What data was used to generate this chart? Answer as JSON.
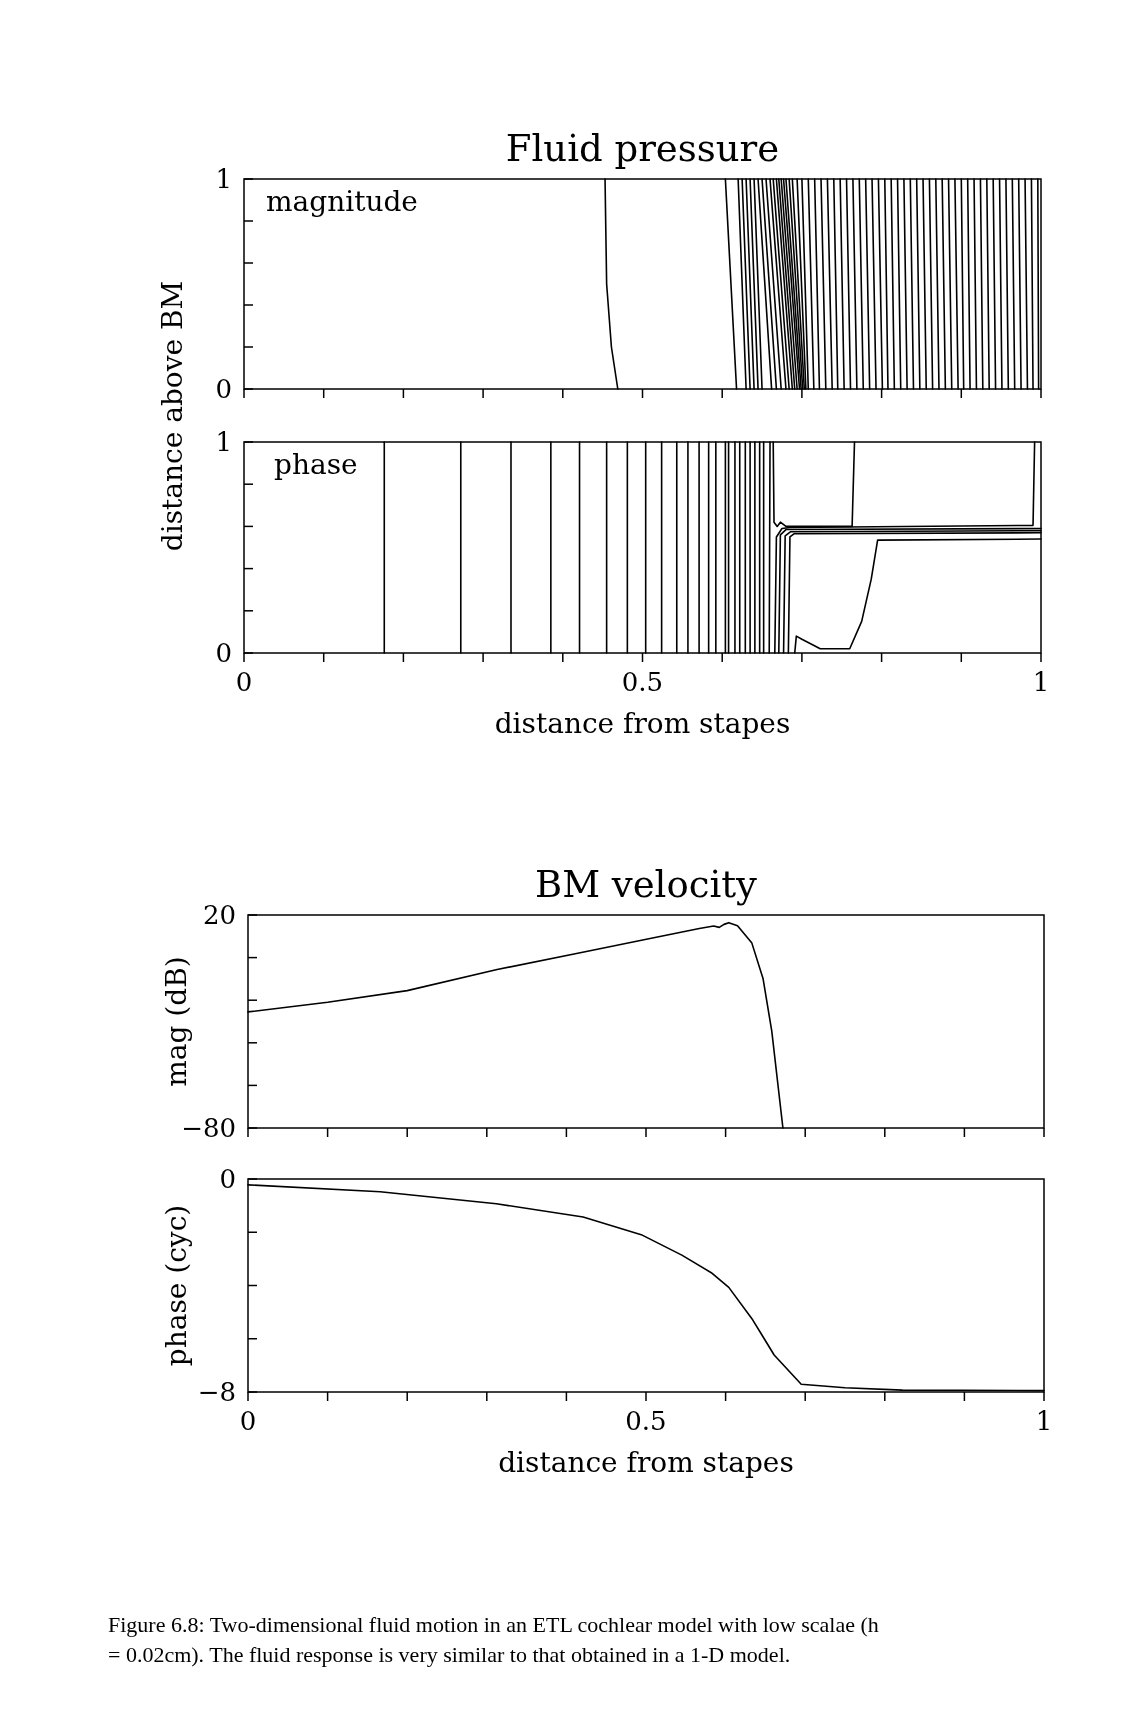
{
  "chart_data": [
    {
      "type": "line",
      "title": "Fluid pressure",
      "ylabel": "distance above BM",
      "annotations": [
        "magnitude"
      ],
      "color": "#000000",
      "xlim": [
        0,
        1
      ],
      "ylim": [
        0,
        1
      ],
      "xticks": [
        0,
        {
          "value": 0.1,
          "label": null
        },
        {
          "value": 0.2,
          "label": null
        },
        {
          "value": 0.3,
          "label": null
        },
        {
          "value": 0.4,
          "label": null
        },
        0.5,
        {
          "value": 0.6,
          "label": null
        },
        {
          "value": 0.7,
          "label": null
        },
        {
          "value": 0.8,
          "label": null
        },
        {
          "value": 0.9,
          "label": null
        },
        1
      ],
      "yticks": [
        0,
        {
          "value": 0.2,
          "label": null
        },
        {
          "value": 0.4,
          "label": null
        },
        {
          "value": 0.6,
          "label": null
        },
        {
          "value": 0.8,
          "label": null
        },
        1
      ],
      "tick_labels": "y",
      "series": [
        {
          "x": [
            0.453,
            0.455,
            0.461,
            0.469
          ],
          "values": [
            1,
            0.5,
            0.2,
            0
          ]
        },
        {
          "x": [
            0.604,
            0.618
          ],
          "values": [
            1,
            0
          ]
        },
        {
          "x": [
            0.62,
            0.63
          ],
          "values": [
            1,
            0
          ]
        },
        {
          "x": [
            0.625,
            0.635
          ],
          "values": [
            1,
            0
          ]
        },
        {
          "x": [
            0.63,
            0.64
          ],
          "values": [
            1,
            0
          ]
        },
        {
          "x": [
            0.635,
            0.645
          ],
          "values": [
            1,
            0
          ]
        },
        {
          "x": [
            0.64,
            0.65
          ],
          "values": [
            1,
            0
          ]
        },
        {
          "x": [
            0.645,
            0.662
          ],
          "values": [
            1,
            0
          ]
        },
        {
          "x": [
            0.65,
            0.668
          ],
          "values": [
            1,
            0
          ]
        },
        {
          "x": [
            0.655,
            0.674
          ],
          "values": [
            1,
            0
          ]
        },
        {
          "x": [
            0.66,
            0.68
          ],
          "values": [
            1,
            0
          ]
        },
        {
          "x": [
            0.664,
            0.684
          ],
          "values": [
            1,
            0
          ]
        },
        {
          "x": [
            0.668,
            0.688
          ],
          "values": [
            1,
            0
          ]
        },
        {
          "x": [
            0.671,
            0.691
          ],
          "values": [
            1,
            0
          ]
        },
        {
          "x": [
            0.674,
            0.694
          ],
          "values": [
            1,
            0
          ]
        },
        {
          "x": [
            0.677,
            0.697
          ],
          "values": [
            1,
            0
          ]
        },
        {
          "x": [
            0.68,
            0.699
          ],
          "values": [
            1,
            0
          ]
        },
        {
          "x": [
            0.684,
            0.701
          ],
          "values": [
            1,
            0
          ]
        },
        {
          "x": [
            0.688,
            0.703
          ],
          "values": [
            1,
            0
          ]
        },
        {
          "x": [
            0.694,
            0.705
          ],
          "values": [
            1,
            0
          ]
        },
        {
          "x": [
            0.7,
            0.708
          ],
          "values": [
            1,
            0
          ]
        },
        {
          "x": [
            0.708,
            0.715
          ],
          "values": [
            1,
            0
          ]
        },
        {
          "x": [
            0.716,
            0.722
          ],
          "values": [
            1,
            0
          ]
        },
        {
          "x": [
            0.724,
            0.73
          ],
          "values": [
            1,
            0
          ]
        },
        {
          "x": [
            0.732,
            0.738
          ],
          "values": [
            1,
            0
          ]
        },
        {
          "x": [
            0.74,
            0.745
          ],
          "values": [
            1,
            0
          ]
        },
        {
          "x": [
            0.748,
            0.753
          ],
          "values": [
            1,
            0
          ]
        },
        {
          "x": [
            0.756,
            0.761
          ],
          "values": [
            1,
            0
          ]
        },
        {
          "x": [
            0.764,
            0.769
          ],
          "values": [
            1,
            0
          ]
        },
        {
          "x": [
            0.772,
            0.777
          ],
          "values": [
            1,
            0
          ]
        },
        {
          "x": [
            0.78,
            0.785
          ],
          "values": [
            1,
            0
          ]
        },
        {
          "x": [
            0.788,
            0.793
          ],
          "values": [
            1,
            0
          ]
        },
        {
          "x": [
            0.796,
            0.801
          ],
          "values": [
            1,
            0
          ]
        },
        {
          "x": [
            0.804,
            0.808
          ],
          "values": [
            1,
            0
          ]
        },
        {
          "x": [
            0.812,
            0.816
          ],
          "values": [
            1,
            0
          ]
        },
        {
          "x": [
            0.82,
            0.824
          ],
          "values": [
            1,
            0
          ]
        },
        {
          "x": [
            0.828,
            0.832
          ],
          "values": [
            1,
            0
          ]
        },
        {
          "x": [
            0.836,
            0.84
          ],
          "values": [
            1,
            0
          ]
        },
        {
          "x": [
            0.844,
            0.848
          ],
          "values": [
            1,
            0
          ]
        },
        {
          "x": [
            0.852,
            0.856
          ],
          "values": [
            1,
            0
          ]
        },
        {
          "x": [
            0.86,
            0.864
          ],
          "values": [
            1,
            0
          ]
        },
        {
          "x": [
            0.868,
            0.872
          ],
          "values": [
            1,
            0
          ]
        },
        {
          "x": [
            0.876,
            0.88
          ],
          "values": [
            1,
            0
          ]
        },
        {
          "x": [
            0.884,
            0.888
          ],
          "values": [
            1,
            0
          ]
        },
        {
          "x": [
            0.892,
            0.896
          ],
          "values": [
            1,
            0
          ]
        },
        {
          "x": [
            0.9,
            0.903
          ],
          "values": [
            1,
            0
          ]
        },
        {
          "x": [
            0.908,
            0.911
          ],
          "values": [
            1,
            0
          ]
        },
        {
          "x": [
            0.916,
            0.919
          ],
          "values": [
            1,
            0
          ]
        },
        {
          "x": [
            0.924,
            0.927
          ],
          "values": [
            1,
            0
          ]
        },
        {
          "x": [
            0.932,
            0.935
          ],
          "values": [
            1,
            0
          ]
        },
        {
          "x": [
            0.94,
            0.943
          ],
          "values": [
            1,
            0
          ]
        },
        {
          "x": [
            0.948,
            0.951
          ],
          "values": [
            1,
            0
          ]
        },
        {
          "x": [
            0.956,
            0.959
          ],
          "values": [
            1,
            0
          ]
        },
        {
          "x": [
            0.964,
            0.967
          ],
          "values": [
            1,
            0
          ]
        },
        {
          "x": [
            0.972,
            0.975
          ],
          "values": [
            1,
            0
          ]
        },
        {
          "x": [
            0.98,
            0.983
          ],
          "values": [
            1,
            0
          ]
        },
        {
          "x": [
            0.988,
            0.99
          ],
          "values": [
            1,
            0
          ]
        },
        {
          "x": [
            0.996,
            0.997
          ],
          "values": [
            1,
            0
          ]
        }
      ]
    },
    {
      "type": "line",
      "xlabel": "distance from stapes",
      "annotations": [
        "phase"
      ],
      "color": "#000000",
      "xlim": [
        0,
        1
      ],
      "ylim": [
        0,
        1
      ],
      "xticks": [
        0,
        {
          "value": 0.1,
          "label": null
        },
        {
          "value": 0.2,
          "label": null
        },
        {
          "value": 0.3,
          "label": null
        },
        {
          "value": 0.4,
          "label": null
        },
        0.5,
        {
          "value": 0.6,
          "label": null
        },
        {
          "value": 0.7,
          "label": null
        },
        {
          "value": 0.8,
          "label": null
        },
        {
          "value": 0.9,
          "label": null
        },
        1
      ],
      "yticks": [
        0,
        {
          "value": 0.2,
          "label": null
        },
        {
          "value": 0.4,
          "label": null
        },
        {
          "value": 0.6,
          "label": null
        },
        {
          "value": 0.8,
          "label": null
        },
        1
      ],
      "series": [
        {
          "x": [
            0.176,
            0.176
          ],
          "values": [
            0,
            1
          ]
        },
        {
          "x": [
            0.272,
            0.272
          ],
          "values": [
            0,
            1
          ]
        },
        {
          "x": [
            0.335,
            0.335
          ],
          "values": [
            0,
            1
          ]
        },
        {
          "x": [
            0.385,
            0.385
          ],
          "values": [
            0,
            1
          ]
        },
        {
          "x": [
            0.421,
            0.421
          ],
          "values": [
            0,
            1
          ]
        },
        {
          "x": [
            0.455,
            0.455
          ],
          "values": [
            0,
            1
          ]
        },
        {
          "x": [
            0.481,
            0.481
          ],
          "values": [
            0,
            1
          ]
        },
        {
          "x": [
            0.504,
            0.504
          ],
          "values": [
            0,
            1
          ]
        },
        {
          "x": [
            0.524,
            0.524
          ],
          "values": [
            0,
            1
          ]
        },
        {
          "x": [
            0.543,
            0.543
          ],
          "values": [
            0,
            1
          ]
        },
        {
          "x": [
            0.557,
            0.557
          ],
          "values": [
            0,
            1
          ]
        },
        {
          "x": [
            0.571,
            0.571
          ],
          "values": [
            0,
            1
          ]
        },
        {
          "x": [
            0.583,
            0.583
          ],
          "values": [
            0,
            1
          ]
        },
        {
          "x": [
            0.592,
            0.592
          ],
          "values": [
            0,
            1
          ]
        },
        {
          "x": [
            0.604,
            0.604
          ],
          "values": [
            0,
            1
          ]
        },
        {
          "x": [
            0.608,
            0.608
          ],
          "values": [
            0,
            1
          ]
        },
        {
          "x": [
            0.616,
            0.616
          ],
          "values": [
            0,
            1
          ]
        },
        {
          "x": [
            0.622,
            0.622
          ],
          "values": [
            0,
            1
          ]
        },
        {
          "x": [
            0.629,
            0.629
          ],
          "values": [
            0,
            1
          ]
        },
        {
          "x": [
            0.635,
            0.635
          ],
          "values": [
            0,
            1
          ]
        },
        {
          "x": [
            0.641,
            0.641
          ],
          "values": [
            0,
            1
          ]
        },
        {
          "x": [
            0.647,
            0.647
          ],
          "values": [
            0,
            1
          ]
        },
        {
          "x": [
            0.652,
            0.652
          ],
          "values": [
            0,
            1
          ]
        },
        {
          "x": [
            0.659,
            0.66
          ],
          "values": [
            0,
            1
          ]
        },
        {
          "x": [
            0.664,
            0.665,
            0.669,
            0.673,
            0.68,
            0.763,
            0.766
          ],
          "values": [
            1,
            0.62,
            0.6,
            0.62,
            0.6,
            0.6,
            1
          ]
        },
        {
          "x": [
            0.666,
            0.668,
            0.675,
            0.685,
            0.99,
            0.992
          ],
          "values": [
            0,
            0.55,
            0.59,
            0.595,
            0.605,
            1
          ]
        },
        {
          "x": [
            0.671,
            0.673,
            0.68,
            1.0
          ],
          "values": [
            0,
            0.56,
            0.585,
            0.59
          ]
        },
        {
          "x": [
            0.677,
            0.679,
            0.686,
            1.0
          ],
          "values": [
            0,
            0.555,
            0.575,
            0.58
          ]
        },
        {
          "x": [
            0.683,
            0.685,
            0.69,
            1.0
          ],
          "values": [
            0,
            0.55,
            0.565,
            0.57
          ]
        },
        {
          "x": [
            0.691,
            0.693,
            0.7,
            0.723,
            0.76,
            0.775,
            0.787,
            0.795,
            1.0
          ],
          "values": [
            0,
            0.08,
            0.065,
            0.02,
            0.02,
            0.15,
            0.35,
            0.535,
            0.54
          ]
        }
      ]
    },
    {
      "type": "line",
      "title": "BM velocity",
      "ylabel": "mag (dB)",
      "color": "#000000",
      "xlim": [
        0,
        1
      ],
      "ylim": [
        -80,
        20
      ],
      "xticks": [
        0,
        {
          "value": 0.1,
          "label": null
        },
        {
          "value": 0.2,
          "label": null
        },
        {
          "value": 0.3,
          "label": null
        },
        {
          "value": 0.4,
          "label": null
        },
        0.5,
        {
          "value": 0.6,
          "label": null
        },
        {
          "value": 0.7,
          "label": null
        },
        {
          "value": 0.8,
          "label": null
        },
        {
          "value": 0.9,
          "label": null
        },
        1
      ],
      "yticks": [
        {
          "value": -80,
          "label": "−80"
        },
        {
          "value": -60,
          "label": null
        },
        {
          "value": -40,
          "label": null
        },
        {
          "value": -20,
          "label": null
        },
        {
          "value": 0,
          "label": null
        },
        20
      ],
      "tick_labels": "y",
      "series": [
        {
          "x": [
            0,
            0.1,
            0.2,
            0.313,
            0.422,
            0.502,
            0.567,
            0.585,
            0.592,
            0.598,
            0.604,
            0.615,
            0.633,
            0.647,
            0.658,
            0.672
          ],
          "values": [
            -25.5,
            -21,
            -15.5,
            -5.6,
            2.6,
            8.7,
            13.7,
            14.8,
            14.2,
            15.6,
            16.4,
            15,
            6.8,
            -9.8,
            -34.5,
            -80
          ]
        }
      ]
    },
    {
      "type": "line",
      "xlabel": "distance from stapes",
      "ylabel": "phase (cyc)",
      "color": "#000000",
      "xlim": [
        0,
        1
      ],
      "ylim": [
        -8,
        0
      ],
      "xticks": [
        0,
        {
          "value": 0.1,
          "label": null
        },
        {
          "value": 0.2,
          "label": null
        },
        {
          "value": 0.3,
          "label": null
        },
        {
          "value": 0.4,
          "label": null
        },
        0.5,
        {
          "value": 0.6,
          "label": null
        },
        {
          "value": 0.7,
          "label": null
        },
        {
          "value": 0.8,
          "label": null
        },
        {
          "value": 0.9,
          "label": null
        },
        1
      ],
      "yticks": [
        {
          "value": -8,
          "label": "−8"
        },
        {
          "value": -6,
          "label": null
        },
        {
          "value": -4,
          "label": null
        },
        {
          "value": -2,
          "label": null
        },
        0
      ],
      "annotations": [
        "Figure 6.8: Two-dimensional fluid motion in an ETL cochlear model with low scalae (h = 0.02cm). The fluid response is very similar to that obtained in a 1-D model."
      ],
      "series": [
        {
          "x": [
            0,
            0.166,
            0.312,
            0.421,
            0.494,
            0.545,
            0.582,
            0.604,
            0.634,
            0.661,
            0.695,
            0.75,
            0.822,
            1
          ],
          "values": [
            -0.22,
            -0.48,
            -0.93,
            -1.43,
            -2.09,
            -2.86,
            -3.52,
            -4.07,
            -5.29,
            -6.61,
            -7.71,
            -7.84,
            -7.93,
            -7.95
          ]
        }
      ]
    }
  ]
}
